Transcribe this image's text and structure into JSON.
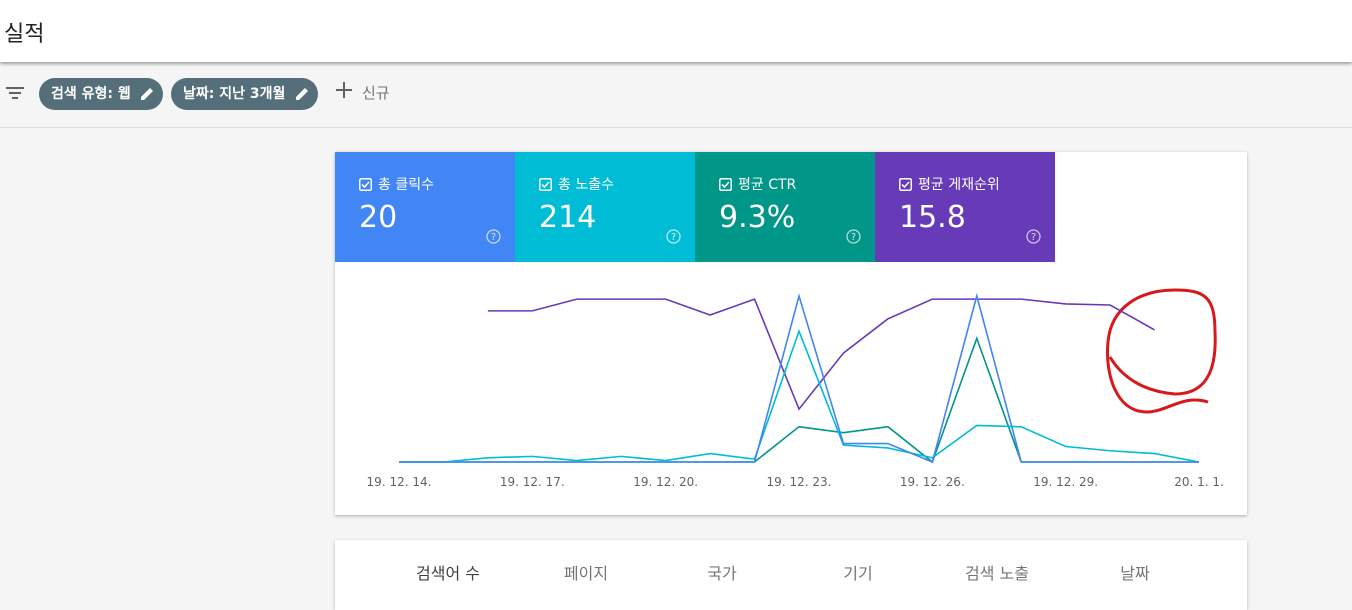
{
  "header": {
    "title": "실적"
  },
  "filters": {
    "chips": [
      "검색 유형: 웹",
      "날짜: 지난 3개월"
    ],
    "new_button": "신규"
  },
  "chart_data": {
    "type": "line",
    "categories": [
      "19. 12. 14.",
      null,
      null,
      "19. 12. 17.",
      null,
      null,
      "19. 12. 20.",
      null,
      null,
      "19. 12. 23.",
      null,
      null,
      "19. 12. 26.",
      null,
      null,
      "19. 12. 29.",
      null,
      null,
      "20. 1. 1."
    ],
    "series": [
      {
        "name": "총 클릭수",
        "total": "20",
        "color": "#4285f4",
        "ylim": [
          0,
          9
        ],
        "values": [
          0,
          0,
          0,
          0,
          0,
          0,
          0,
          0,
          0,
          9,
          1,
          1,
          0,
          9,
          0,
          0,
          0,
          0,
          0
        ]
      },
      {
        "name": "총 노출수",
        "total": "214",
        "color": "#00bcd4",
        "ylim": [
          0,
          118
        ],
        "values": [
          0,
          0,
          3,
          4,
          1,
          4,
          1,
          6,
          2,
          93,
          12,
          10,
          3,
          26,
          25,
          11,
          8,
          6,
          0
        ]
      },
      {
        "name": "평균 CTR",
        "total": "9.3%",
        "color": "#009688",
        "ylim": [
          0,
          47
        ],
        "values": [
          0,
          0,
          0,
          0,
          0,
          0,
          0,
          0,
          0,
          10,
          8.3,
          10,
          0,
          35,
          0,
          0,
          0,
          0,
          0
        ]
      },
      {
        "name": "평균 게재순위",
        "total": "15.8",
        "color": "#673ab7",
        "ylim": [
          60,
          12
        ],
        "values": [
          null,
          null,
          16.3,
          16.3,
          12.9,
          12.9,
          12.9,
          17.5,
          12.9,
          44.7,
          28.5,
          18.6,
          12.9,
          12.9,
          12.9,
          14.3,
          14.6,
          21.8,
          null
        ]
      }
    ]
  },
  "tabs": [
    "검색어 수",
    "페이지",
    "국가",
    "기기",
    "검색 노출",
    "날짜"
  ]
}
